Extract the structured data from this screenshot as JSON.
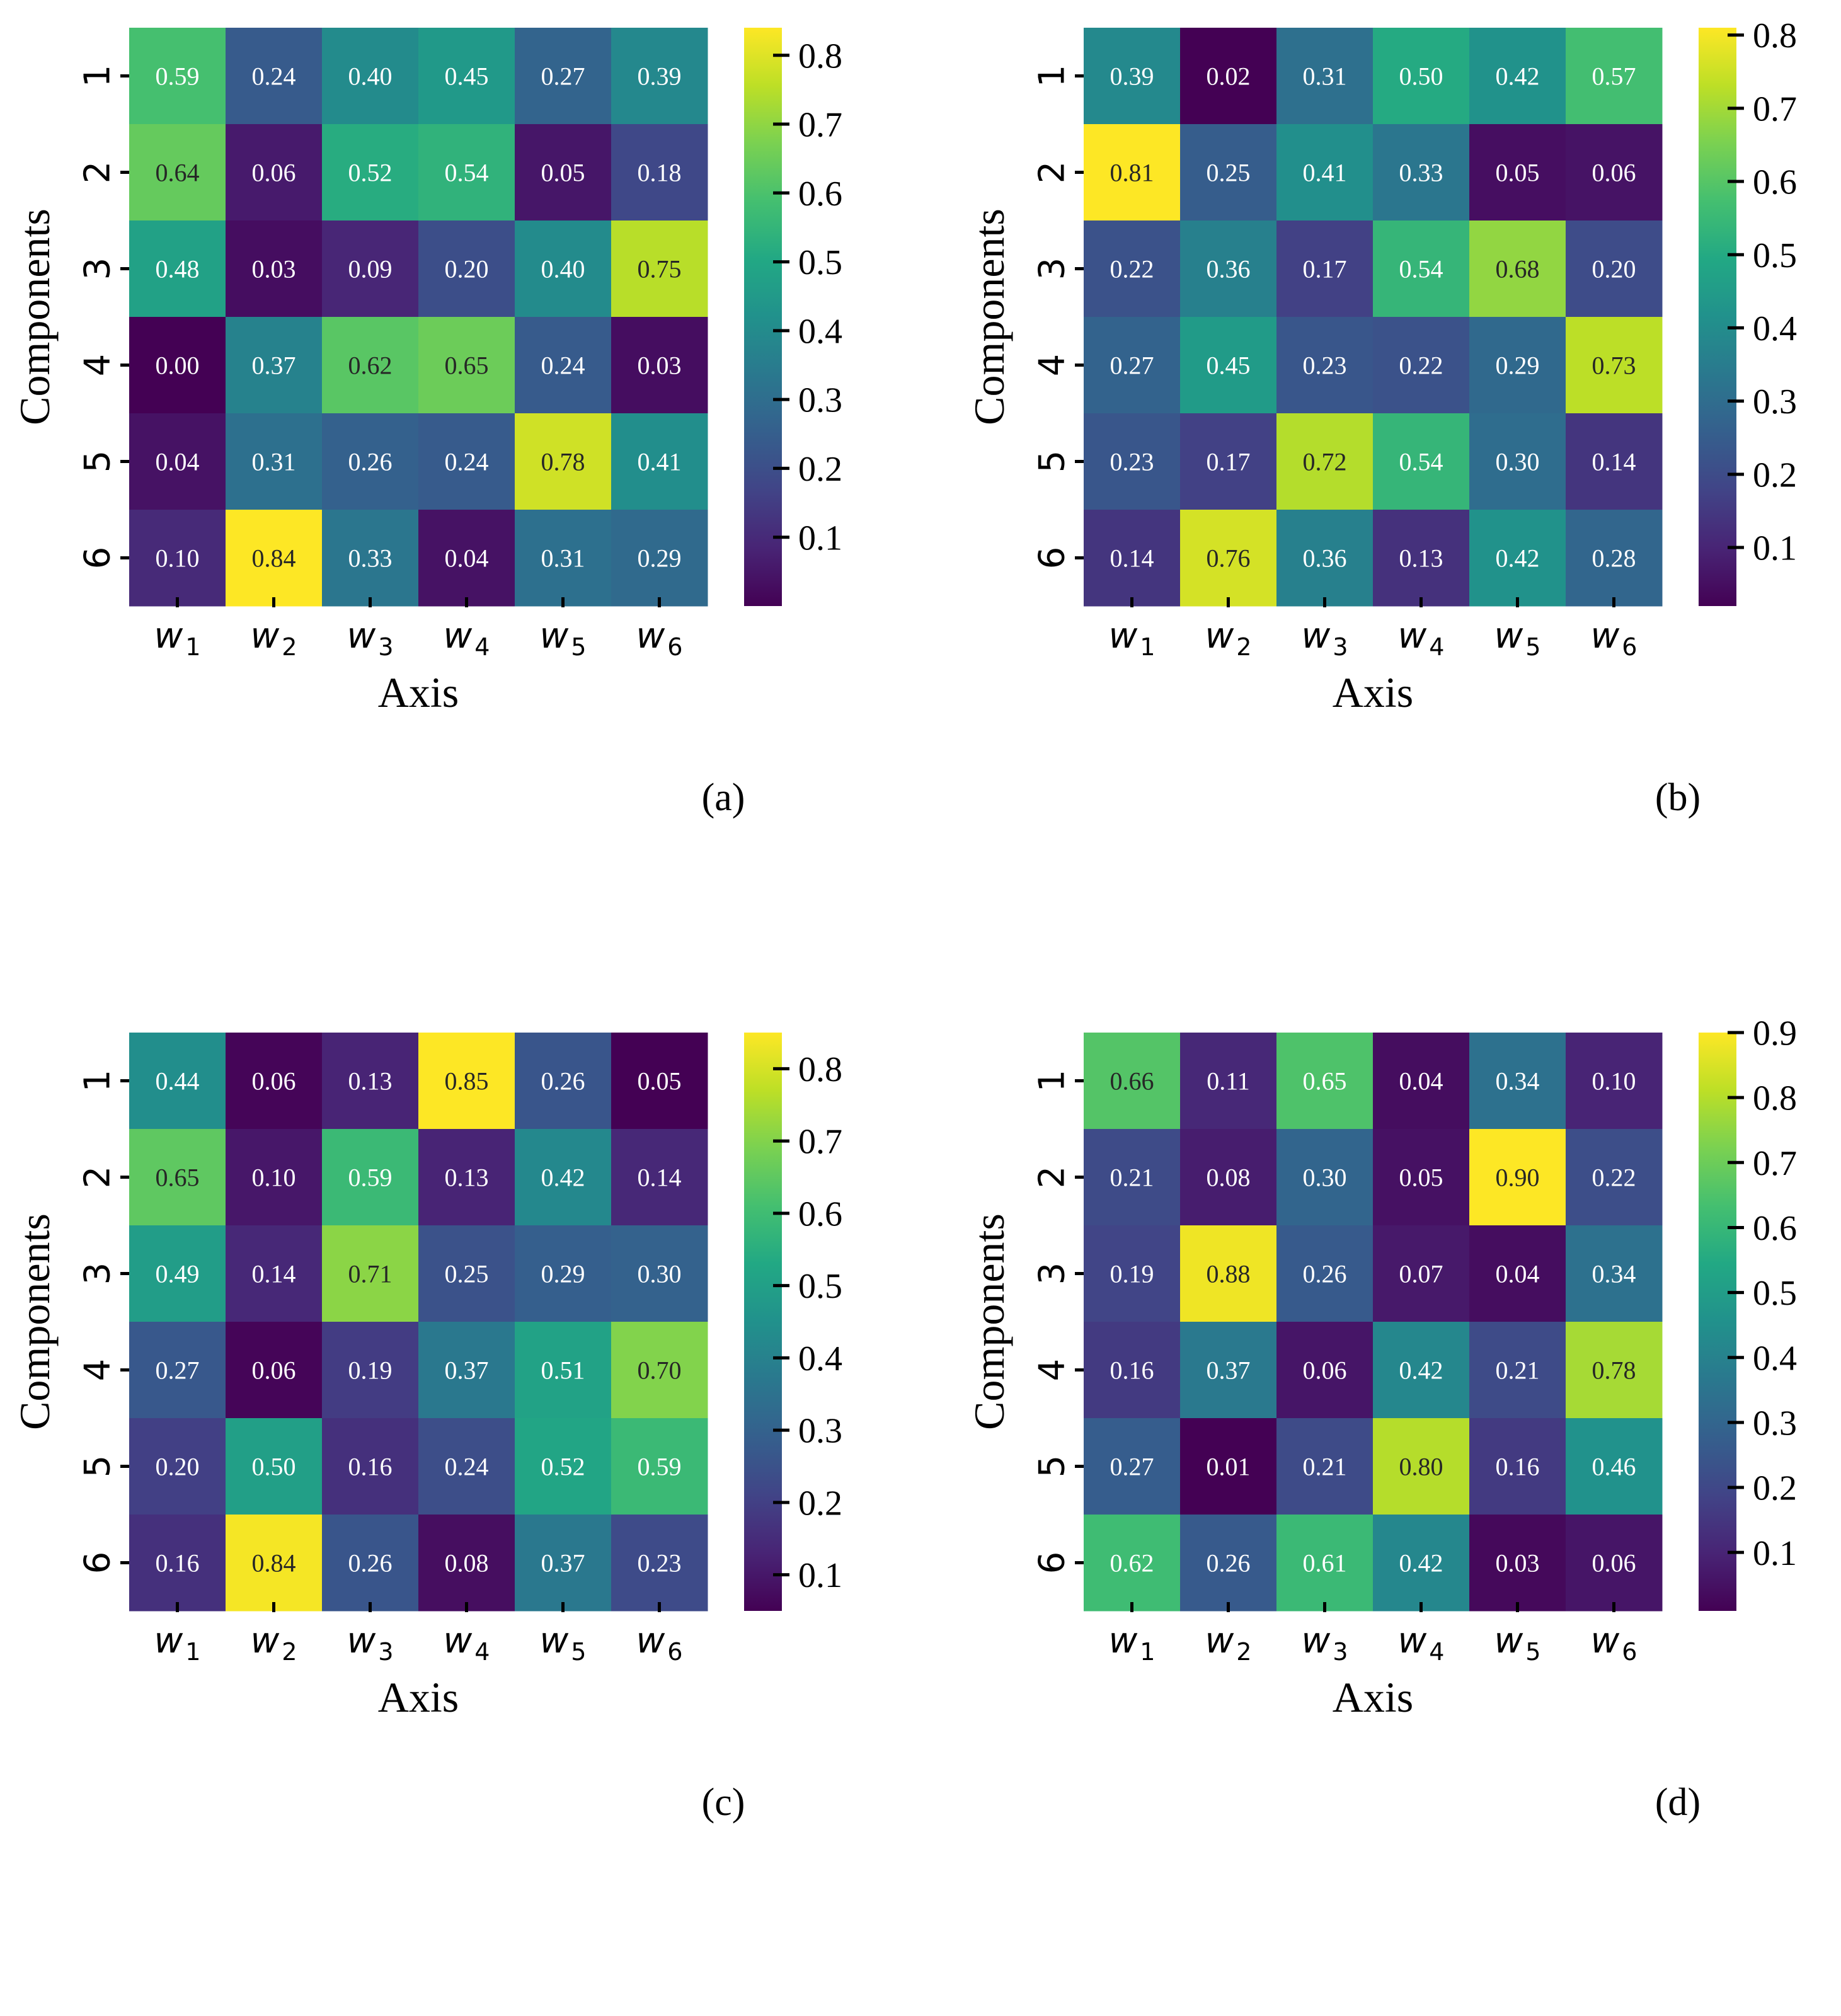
{
  "figure": {
    "panels": [
      "a",
      "b",
      "c",
      "d"
    ]
  },
  "chart_data": [
    {
      "type": "heatmap",
      "panel_label": "(a)",
      "title": "",
      "xlabel": "Axis",
      "ylabel": "Components",
      "x_categories": [
        "w1",
        "w2",
        "w3",
        "w4",
        "w5",
        "w6"
      ],
      "y_categories": [
        "1",
        "2",
        "3",
        "4",
        "5",
        "6"
      ],
      "values": [
        [
          0.59,
          0.24,
          0.4,
          0.45,
          0.27,
          0.39
        ],
        [
          0.64,
          0.06,
          0.52,
          0.54,
          0.05,
          0.18
        ],
        [
          0.48,
          0.03,
          0.09,
          0.2,
          0.4,
          0.75
        ],
        [
          0.0,
          0.37,
          0.62,
          0.65,
          0.24,
          0.03
        ],
        [
          0.04,
          0.31,
          0.26,
          0.24,
          0.78,
          0.41
        ],
        [
          0.1,
          0.84,
          0.33,
          0.04,
          0.31,
          0.29
        ]
      ],
      "colormap": "viridis",
      "colorbar": {
        "vmin": 0.0,
        "vmax": 0.84,
        "ticks": [
          0.1,
          0.2,
          0.3,
          0.4,
          0.5,
          0.6,
          0.7,
          0.8
        ],
        "tick_labels": [
          "0.1",
          "0.2",
          "0.3",
          "0.4",
          "0.5",
          "0.6",
          "0.7",
          "0.8"
        ]
      }
    },
    {
      "type": "heatmap",
      "panel_label": "(b)",
      "title": "",
      "xlabel": "Axis",
      "ylabel": "Components",
      "x_categories": [
        "w1",
        "w2",
        "w3",
        "w4",
        "w5",
        "w6"
      ],
      "y_categories": [
        "1",
        "2",
        "3",
        "4",
        "5",
        "6"
      ],
      "values": [
        [
          0.39,
          0.02,
          0.31,
          0.5,
          0.42,
          0.57
        ],
        [
          0.81,
          0.25,
          0.41,
          0.33,
          0.05,
          0.06
        ],
        [
          0.22,
          0.36,
          0.17,
          0.54,
          0.68,
          0.2
        ],
        [
          0.27,
          0.45,
          0.23,
          0.22,
          0.29,
          0.73
        ],
        [
          0.23,
          0.17,
          0.72,
          0.54,
          0.3,
          0.14
        ],
        [
          0.14,
          0.76,
          0.36,
          0.13,
          0.42,
          0.28
        ]
      ],
      "colormap": "viridis",
      "colorbar": {
        "vmin": 0.02,
        "vmax": 0.81,
        "ticks": [
          0.1,
          0.2,
          0.3,
          0.4,
          0.5,
          0.6,
          0.7,
          0.8
        ],
        "tick_labels": [
          "0.1",
          "0.2",
          "0.3",
          "0.4",
          "0.5",
          "0.6",
          "0.7",
          "0.8"
        ]
      }
    },
    {
      "type": "heatmap",
      "panel_label": "(c)",
      "title": "",
      "xlabel": "Axis",
      "ylabel": "Components",
      "x_categories": [
        "w1",
        "w2",
        "w3",
        "w4",
        "w5",
        "w6"
      ],
      "y_categories": [
        "1",
        "2",
        "3",
        "4",
        "5",
        "6"
      ],
      "values": [
        [
          0.44,
          0.06,
          0.13,
          0.85,
          0.26,
          0.05
        ],
        [
          0.65,
          0.1,
          0.59,
          0.13,
          0.42,
          0.14
        ],
        [
          0.49,
          0.14,
          0.71,
          0.25,
          0.29,
          0.3
        ],
        [
          0.27,
          0.06,
          0.19,
          0.37,
          0.51,
          0.7
        ],
        [
          0.2,
          0.5,
          0.16,
          0.24,
          0.52,
          0.59
        ],
        [
          0.16,
          0.84,
          0.26,
          0.08,
          0.37,
          0.23
        ]
      ],
      "colormap": "viridis",
      "colorbar": {
        "vmin": 0.05,
        "vmax": 0.85,
        "ticks": [
          0.1,
          0.2,
          0.3,
          0.4,
          0.5,
          0.6,
          0.7,
          0.8
        ],
        "tick_labels": [
          "0.1",
          "0.2",
          "0.3",
          "0.4",
          "0.5",
          "0.6",
          "0.7",
          "0.8"
        ]
      }
    },
    {
      "type": "heatmap",
      "panel_label": "(d)",
      "title": "",
      "xlabel": "Axis",
      "ylabel": "Components",
      "x_categories": [
        "w1",
        "w2",
        "w3",
        "w4",
        "w5",
        "w6"
      ],
      "y_categories": [
        "1",
        "2",
        "3",
        "4",
        "5",
        "6"
      ],
      "values": [
        [
          0.66,
          0.11,
          0.65,
          0.04,
          0.34,
          0.1
        ],
        [
          0.21,
          0.08,
          0.3,
          0.05,
          0.9,
          0.22
        ],
        [
          0.19,
          0.88,
          0.26,
          0.07,
          0.04,
          0.34
        ],
        [
          0.16,
          0.37,
          0.06,
          0.42,
          0.21,
          0.78
        ],
        [
          0.27,
          0.01,
          0.21,
          0.8,
          0.16,
          0.46
        ],
        [
          0.62,
          0.26,
          0.61,
          0.42,
          0.03,
          0.06
        ]
      ],
      "colormap": "viridis",
      "colorbar": {
        "vmin": 0.01,
        "vmax": 0.9,
        "ticks": [
          0.1,
          0.2,
          0.3,
          0.4,
          0.5,
          0.6,
          0.7,
          0.8,
          0.9
        ],
        "tick_labels": [
          "0.1",
          "0.2",
          "0.3",
          "0.4",
          "0.5",
          "0.6",
          "0.7",
          "0.8",
          "0.9"
        ]
      }
    }
  ]
}
